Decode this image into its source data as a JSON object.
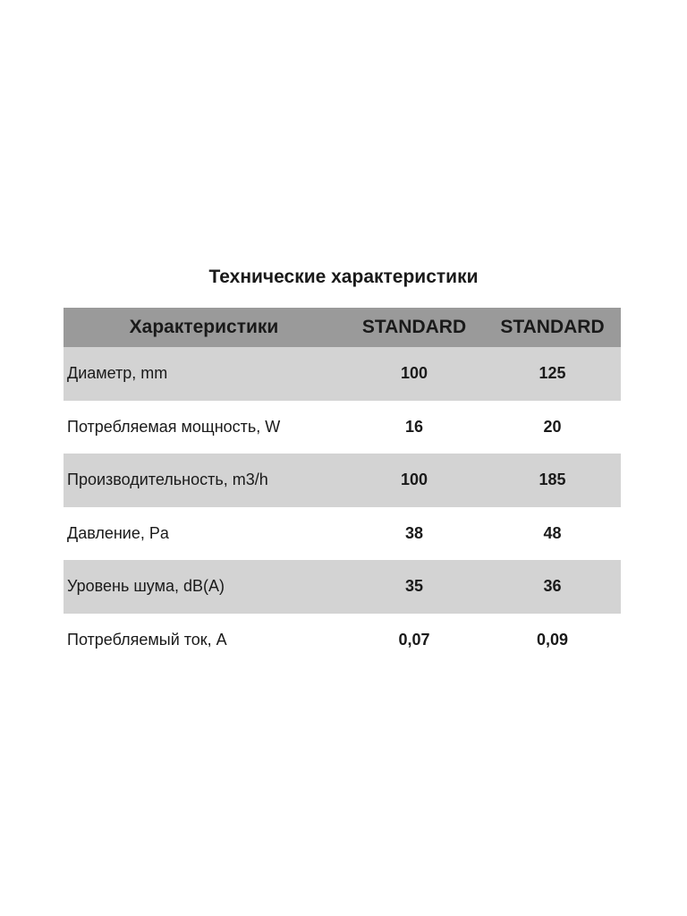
{
  "title": "Технические характеристики",
  "table": {
    "headers": [
      "Характеристики",
      "STANDARD",
      "STANDARD"
    ],
    "rows": [
      [
        "Диаметр, mm",
        "100",
        "125"
      ],
      [
        "Потребляемая мощность, W",
        "16",
        "20"
      ],
      [
        "Производительность, m3/h",
        "100",
        "185"
      ],
      [
        "Давление, Pa",
        "38",
        "48"
      ],
      [
        "Уровень шума, dB(A)",
        "35",
        "36"
      ],
      [
        "Потребляемый ток, A",
        "0,07",
        "0,09"
      ]
    ]
  }
}
